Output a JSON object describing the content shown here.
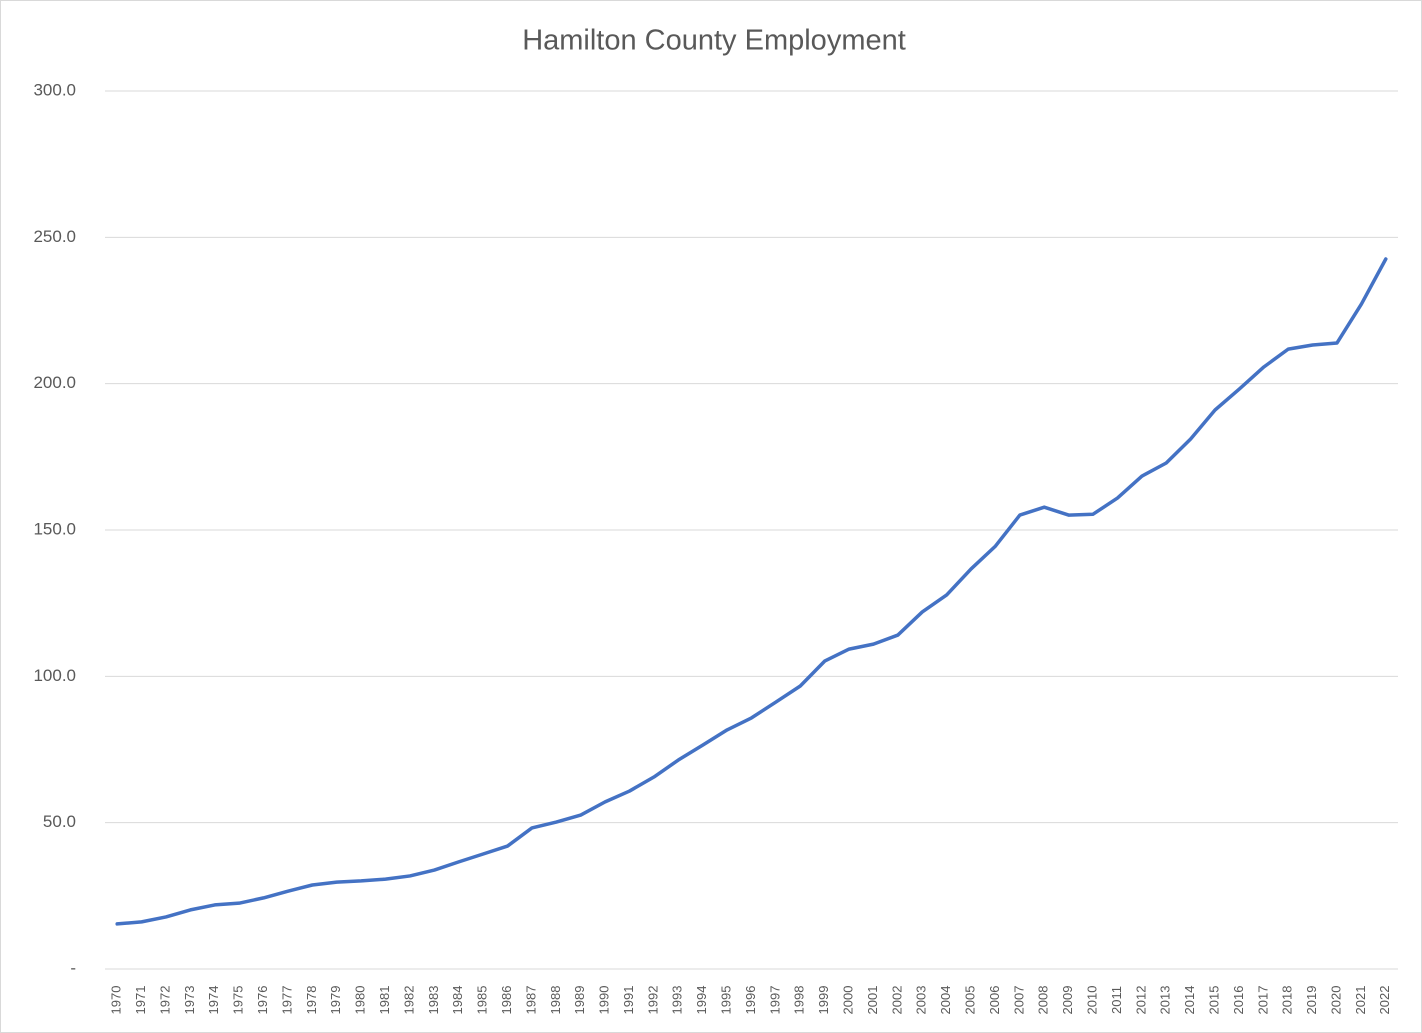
{
  "chart_data": {
    "type": "line",
    "title": "Hamilton County Employment",
    "categories": [
      "1970",
      "1971",
      "1972",
      "1973",
      "1974",
      "1975",
      "1976",
      "1977",
      "1978",
      "1979",
      "1980",
      "1981",
      "1982",
      "1983",
      "1984",
      "1985",
      "1986",
      "1987",
      "1988",
      "1989",
      "1990",
      "1991",
      "1992",
      "1993",
      "1994",
      "1995",
      "1996",
      "1997",
      "1998",
      "1999",
      "2000",
      "2001",
      "2002",
      "2003",
      "2004",
      "2005",
      "2006",
      "2007",
      "2008",
      "2009",
      "2010",
      "2011",
      "2012",
      "2013",
      "2014",
      "2015",
      "2016",
      "2017",
      "2018",
      "2019",
      "2020",
      "2021",
      "2022"
    ],
    "series": [
      {
        "name": "Employment",
        "color": "#4472c4",
        "values": [
          15.4,
          16.1,
          17.8,
          20.2,
          21.9,
          22.5,
          24.3,
          26.6,
          28.7,
          29.7,
          30.1,
          30.7,
          31.8,
          33.8,
          36.6,
          39.3,
          42.0,
          48.2,
          50.2,
          52.6,
          57.1,
          60.8,
          65.6,
          71.4,
          76.5,
          81.7,
          85.8,
          91.2,
          96.7,
          105.2,
          109.3,
          111.0,
          114.1,
          122.0,
          127.8,
          136.7,
          144.5,
          155.1,
          157.8,
          155.1,
          155.4,
          160.9,
          168.4,
          172.9,
          181.1,
          191.0,
          198.2,
          205.7,
          211.8,
          213.2,
          213.9,
          227.2,
          242.6
        ]
      }
    ],
    "ylim": [
      0,
      300
    ],
    "yticks": [
      {
        "value": 0,
        "label": "-"
      },
      {
        "value": 50,
        "label": "50.0"
      },
      {
        "value": 100,
        "label": "100.0"
      },
      {
        "value": 150,
        "label": "150.0"
      },
      {
        "value": 200,
        "label": "200.0"
      },
      {
        "value": 250,
        "label": "250.0"
      },
      {
        "value": 300,
        "label": "300.0"
      }
    ],
    "grid": true
  }
}
